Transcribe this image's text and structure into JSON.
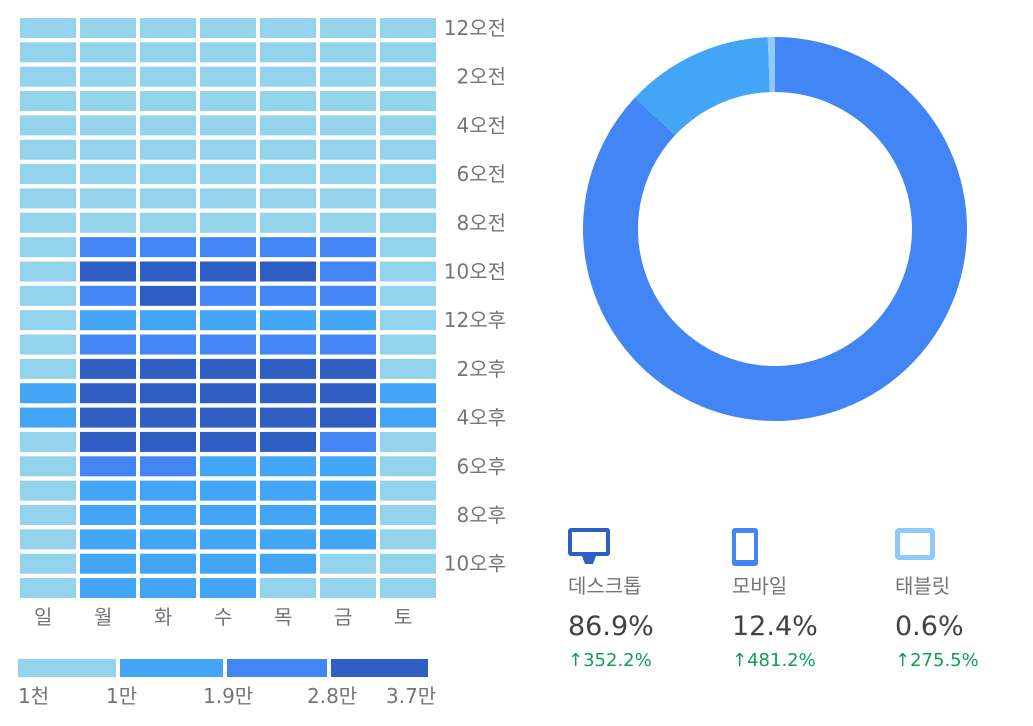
{
  "heatmap": {
    "days": [
      "일",
      "월",
      "화",
      "수",
      "목",
      "금",
      "토"
    ],
    "hour_labels": [
      "12오전",
      "2오전",
      "4오전",
      "6오전",
      "8오전",
      "10오전",
      "12오후",
      "2오후",
      "4오후",
      "6오후",
      "8오후",
      "10오후"
    ],
    "palette": [
      "#93d3ec",
      "#42a5f5",
      "#4285f4",
      "#2f5ec4"
    ],
    "levels": [
      [
        0,
        0,
        0,
        0,
        0,
        0,
        0
      ],
      [
        0,
        0,
        0,
        0,
        0,
        0,
        0
      ],
      [
        0,
        0,
        0,
        0,
        0,
        0,
        0
      ],
      [
        0,
        0,
        0,
        0,
        0,
        0,
        0
      ],
      [
        0,
        0,
        0,
        0,
        0,
        0,
        0
      ],
      [
        0,
        0,
        0,
        0,
        0,
        0,
        0
      ],
      [
        0,
        0,
        0,
        0,
        0,
        0,
        0
      ],
      [
        0,
        0,
        0,
        0,
        0,
        0,
        0
      ],
      [
        0,
        0,
        0,
        0,
        0,
        0,
        0
      ],
      [
        0,
        2,
        2,
        2,
        2,
        2,
        0
      ],
      [
        0,
        3,
        3,
        3,
        3,
        2,
        0
      ],
      [
        0,
        2,
        3,
        2,
        2,
        2,
        0
      ],
      [
        0,
        1,
        1,
        1,
        1,
        1,
        0
      ],
      [
        0,
        2,
        2,
        2,
        2,
        2,
        0
      ],
      [
        0,
        3,
        3,
        3,
        3,
        3,
        0
      ],
      [
        1,
        3,
        3,
        3,
        3,
        3,
        1
      ],
      [
        1,
        3,
        3,
        3,
        3,
        3,
        1
      ],
      [
        0,
        3,
        3,
        3,
        3,
        2,
        0
      ],
      [
        0,
        2,
        2,
        1,
        1,
        1,
        0
      ],
      [
        0,
        1,
        1,
        1,
        1,
        1,
        0
      ],
      [
        0,
        1,
        1,
        1,
        1,
        1,
        0
      ],
      [
        0,
        1,
        1,
        1,
        1,
        1,
        0
      ],
      [
        0,
        1,
        1,
        1,
        1,
        0,
        0
      ],
      [
        0,
        1,
        1,
        1,
        0,
        0,
        0
      ]
    ],
    "legend_labels": [
      "1천",
      "1만",
      "1.9만",
      "2.8만",
      "3.7만"
    ]
  },
  "chart_data": [
    {
      "type": "heatmap",
      "x": [
        "일",
        "월",
        "화",
        "수",
        "목",
        "금",
        "토"
      ],
      "y_hours": [
        "12오전",
        "2오전",
        "4오전",
        "6오전",
        "8오전",
        "10오전",
        "12오후",
        "2오후",
        "4오후",
        "6오후",
        "8오후",
        "10오후"
      ],
      "scale_bins": [
        "1천",
        "1만",
        "1.9만",
        "2.8만",
        "3.7만"
      ]
    },
    {
      "type": "pie",
      "categories": [
        "데스크톱",
        "모바일",
        "태블릿"
      ],
      "values": [
        86.9,
        12.4,
        0.6
      ],
      "colors": [
        "#4285f4",
        "#42a5f5",
        "#90caf9"
      ]
    }
  ],
  "devices": [
    {
      "name": "데스크톱",
      "pct": "86.9%",
      "change": "352.2%",
      "color": "#3d6fd9",
      "icon": "desktop-icon"
    },
    {
      "name": "모바일",
      "pct": "12.4%",
      "change": "481.2%",
      "color": "#4285f4",
      "icon": "mobile-icon"
    },
    {
      "name": "태블릿",
      "pct": "0.6%",
      "change": "275.5%",
      "color": "#90caf9",
      "icon": "tablet-icon"
    }
  ]
}
